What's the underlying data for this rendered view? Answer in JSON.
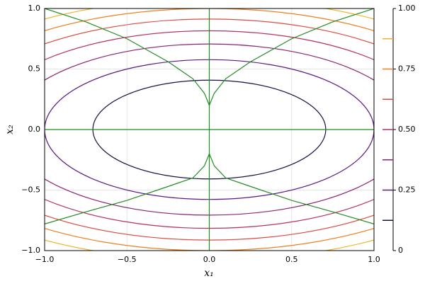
{
  "chart_data": {
    "type": "contour",
    "xlabel": "x₁",
    "ylabel": "x₂",
    "xlim": [
      -1,
      1
    ],
    "ylim": [
      -1,
      1
    ],
    "xticks": [
      {
        "value": -1,
        "label": "−1.0"
      },
      {
        "value": -0.5,
        "label": "−0.5"
      },
      {
        "value": 0,
        "label": "0.0"
      },
      {
        "value": 0.5,
        "label": "0.5"
      },
      {
        "value": 1,
        "label": "1.0"
      }
    ],
    "yticks": [
      {
        "value": -1,
        "label": "−1.0"
      },
      {
        "value": -0.5,
        "label": "−0.5"
      },
      {
        "value": 0,
        "label": "0.0"
      },
      {
        "value": 0.5,
        "label": "0.5"
      },
      {
        "value": 1,
        "label": "1.0"
      }
    ],
    "grid": true,
    "colorbar": {
      "lim": [
        0,
        1
      ],
      "ticks": [
        0,
        0.25,
        {
          "value": 0.5,
          "label": "0.50"
        },
        0.75,
        {
          "value": 1,
          "label": "1.00"
        }
      ]
    },
    "contours": [
      {
        "level": 0.125,
        "rx": 0.707,
        "ry": 0.408,
        "color": "#1c1044"
      },
      {
        "level": 0.25,
        "rx": 1.0,
        "ry": 0.577,
        "color": "#5a1a84"
      },
      {
        "level": 0.375,
        "rx": 1.225,
        "ry": 0.707,
        "color": "#8c2272"
      },
      {
        "level": 0.5,
        "rx": 1.414,
        "ry": 0.816,
        "color": "#b8325a"
      },
      {
        "level": 0.625,
        "rx": 1.581,
        "ry": 0.913,
        "color": "#dc4c40"
      },
      {
        "level": 0.75,
        "rx": 1.732,
        "ry": 1.0,
        "color": "#f07f1e"
      },
      {
        "level": 0.875,
        "rx": 1.871,
        "ry": 1.08,
        "color": "#f5b02a"
      }
    ],
    "series": [
      {
        "color": "#228b22",
        "x": [
          -1,
          1
        ],
        "values": [
          0,
          0
        ]
      },
      {
        "color": "#228b22",
        "x": [
          0,
          0
        ],
        "values": [
          -1,
          1
        ]
      },
      {
        "color": "#228b22",
        "x": [
          -1,
          -0.75,
          -0.5,
          -0.25,
          -0.1,
          -0.03,
          0,
          0.03,
          0.1,
          0.25,
          0.5,
          0.75,
          1
        ],
        "values": [
          1,
          0.89,
          0.75,
          0.56,
          0.42,
          0.3,
          0.2,
          0.3,
          0.42,
          0.56,
          0.75,
          0.89,
          1
        ]
      },
      {
        "color": "#228b22",
        "x": [
          -1,
          -0.75,
          -0.5,
          -0.25,
          -0.1,
          -0.03,
          0,
          0.03,
          0.1,
          0.25,
          0.5,
          0.75,
          1
        ],
        "values": [
          -0.78,
          -0.68,
          -0.585,
          -0.47,
          -0.4,
          -0.3,
          -0.2,
          -0.3,
          -0.4,
          -0.47,
          -0.585,
          -0.68,
          -0.78
        ]
      }
    ]
  }
}
